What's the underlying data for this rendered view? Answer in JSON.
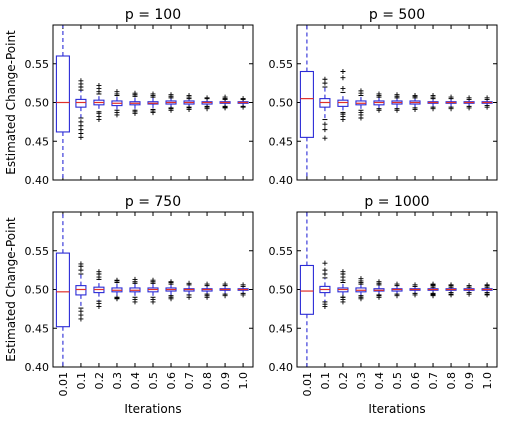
{
  "chart_data": [
    {
      "type": "box",
      "title": "p = 100",
      "xlabel": "",
      "ylabel": "Estimated Change-Point",
      "ylim": [
        0.4,
        0.6
      ],
      "yticks": [
        "0.40",
        "0.45",
        "0.50",
        "0.55"
      ],
      "xticks": [
        "0.01",
        "0.1",
        "0.2",
        "0.3",
        "0.4",
        "0.5",
        "0.6",
        "0.7",
        "0.8",
        "0.9",
        "1.0"
      ],
      "boxes": [
        {
          "x": "0.01",
          "whislo": 0.4,
          "q1": 0.462,
          "med": 0.5,
          "q3": 0.56,
          "whishi": 0.6,
          "fliers": []
        },
        {
          "x": "0.1",
          "whislo": 0.48,
          "q1": 0.494,
          "med": 0.5,
          "q3": 0.504,
          "whishi": 0.516,
          "fliers": [
            0.455,
            0.46,
            0.465,
            0.47,
            0.475,
            0.52,
            0.524,
            0.528
          ]
        },
        {
          "x": "0.2",
          "whislo": 0.488,
          "q1": 0.497,
          "med": 0.5,
          "q3": 0.503,
          "whishi": 0.511,
          "fliers": [
            0.478,
            0.482,
            0.486,
            0.514,
            0.518,
            0.522
          ]
        },
        {
          "x": "0.3",
          "whislo": 0.49,
          "q1": 0.496,
          "med": 0.499,
          "q3": 0.502,
          "whishi": 0.509,
          "fliers": [
            0.484,
            0.487,
            0.511,
            0.514
          ]
        },
        {
          "x": "0.4",
          "whislo": 0.49,
          "q1": 0.497,
          "med": 0.499,
          "q3": 0.501,
          "whishi": 0.508,
          "fliers": [
            0.486,
            0.488,
            0.51,
            0.512
          ]
        },
        {
          "x": "0.5",
          "whislo": 0.491,
          "q1": 0.498,
          "med": 0.499,
          "q3": 0.501,
          "whishi": 0.507,
          "fliers": [
            0.487,
            0.489,
            0.509,
            0.511
          ]
        },
        {
          "x": "0.6",
          "whislo": 0.493,
          "q1": 0.498,
          "med": 0.5,
          "q3": 0.502,
          "whishi": 0.506,
          "fliers": [
            0.49,
            0.492,
            0.508,
            0.51
          ]
        },
        {
          "x": "0.7",
          "whislo": 0.494,
          "q1": 0.498,
          "med": 0.5,
          "q3": 0.502,
          "whishi": 0.505,
          "fliers": [
            0.491,
            0.493,
            0.507,
            0.509
          ]
        },
        {
          "x": "0.8",
          "whislo": 0.495,
          "q1": 0.498,
          "med": 0.5,
          "q3": 0.501,
          "whishi": 0.505,
          "fliers": [
            0.492,
            0.494,
            0.506
          ]
        },
        {
          "x": "0.9",
          "whislo": 0.495,
          "q1": 0.499,
          "med": 0.5,
          "q3": 0.501,
          "whishi": 0.504,
          "fliers": [
            0.493,
            0.494,
            0.505,
            0.507
          ]
        },
        {
          "x": "1.0",
          "whislo": 0.495,
          "q1": 0.499,
          "med": 0.5,
          "q3": 0.501,
          "whishi": 0.504,
          "fliers": [
            0.494,
            0.505
          ]
        }
      ]
    },
    {
      "type": "box",
      "title": "p = 500",
      "xlabel": "",
      "ylabel": "",
      "ylim": [
        0.4,
        0.6
      ],
      "yticks": [
        "0.40",
        "0.45",
        "0.50",
        "0.55"
      ],
      "xticks": [
        "0.01",
        "0.1",
        "0.2",
        "0.3",
        "0.4",
        "0.5",
        "0.6",
        "0.7",
        "0.8",
        "0.9",
        "1.0"
      ],
      "boxes": [
        {
          "x": "0.01",
          "whislo": 0.4,
          "q1": 0.455,
          "med": 0.505,
          "q3": 0.54,
          "whishi": 0.6,
          "fliers": []
        },
        {
          "x": "0.1",
          "whislo": 0.478,
          "q1": 0.494,
          "med": 0.5,
          "q3": 0.505,
          "whishi": 0.52,
          "fliers": [
            0.454,
            0.465,
            0.472,
            0.525,
            0.53
          ]
        },
        {
          "x": "0.2",
          "whislo": 0.487,
          "q1": 0.495,
          "med": 0.5,
          "q3": 0.503,
          "whishi": 0.513,
          "fliers": [
            0.478,
            0.482,
            0.485,
            0.518,
            0.532,
            0.54
          ]
        },
        {
          "x": "0.3",
          "whislo": 0.49,
          "q1": 0.497,
          "med": 0.499,
          "q3": 0.502,
          "whishi": 0.509,
          "fliers": [
            0.48,
            0.484,
            0.487,
            0.512,
            0.515
          ]
        },
        {
          "x": "0.4",
          "whislo": 0.492,
          "q1": 0.497,
          "med": 0.5,
          "q3": 0.502,
          "whishi": 0.507,
          "fliers": [
            0.49,
            0.509,
            0.511
          ]
        },
        {
          "x": "0.5",
          "whislo": 0.492,
          "q1": 0.498,
          "med": 0.5,
          "q3": 0.502,
          "whishi": 0.506,
          "fliers": [
            0.49,
            0.508,
            0.51
          ]
        },
        {
          "x": "0.6",
          "whislo": 0.493,
          "q1": 0.498,
          "med": 0.5,
          "q3": 0.502,
          "whishi": 0.506,
          "fliers": [
            0.491,
            0.508,
            0.509
          ]
        },
        {
          "x": "0.7",
          "whislo": 0.494,
          "q1": 0.499,
          "med": 0.5,
          "q3": 0.501,
          "whishi": 0.505,
          "fliers": [
            0.492,
            0.507,
            0.509
          ]
        },
        {
          "x": "0.8",
          "whislo": 0.494,
          "q1": 0.499,
          "med": 0.5,
          "q3": 0.501,
          "whishi": 0.505,
          "fliers": [
            0.492,
            0.507
          ]
        },
        {
          "x": "0.9",
          "whislo": 0.495,
          "q1": 0.499,
          "med": 0.5,
          "q3": 0.501,
          "whishi": 0.504,
          "fliers": [
            0.493,
            0.506
          ]
        },
        {
          "x": "1.0",
          "whislo": 0.496,
          "q1": 0.499,
          "med": 0.5,
          "q3": 0.501,
          "whishi": 0.504,
          "fliers": [
            0.494,
            0.506
          ]
        }
      ]
    },
    {
      "type": "box",
      "title": "p = 750",
      "xlabel": "Iterations",
      "ylabel": "Estimated Change-Point",
      "ylim": [
        0.4,
        0.6
      ],
      "yticks": [
        "0.40",
        "0.45",
        "0.50",
        "0.55"
      ],
      "xticks": [
        "0.01",
        "0.1",
        "0.2",
        "0.3",
        "0.4",
        "0.5",
        "0.6",
        "0.7",
        "0.8",
        "0.9",
        "1.0"
      ],
      "boxes": [
        {
          "x": "0.01",
          "whislo": 0.4,
          "q1": 0.452,
          "med": 0.497,
          "q3": 0.547,
          "whishi": 0.6,
          "fliers": []
        },
        {
          "x": "0.1",
          "whislo": 0.476,
          "q1": 0.493,
          "med": 0.5,
          "q3": 0.505,
          "whishi": 0.52,
          "fliers": [
            0.462,
            0.467,
            0.472,
            0.525,
            0.53,
            0.533
          ]
        },
        {
          "x": "0.2",
          "whislo": 0.485,
          "q1": 0.496,
          "med": 0.5,
          "q3": 0.503,
          "whishi": 0.513,
          "fliers": [
            0.478,
            0.482,
            0.516,
            0.52,
            0.523
          ]
        },
        {
          "x": "0.3",
          "whislo": 0.49,
          "q1": 0.497,
          "med": 0.499,
          "q3": 0.502,
          "whishi": 0.509,
          "fliers": [
            0.488,
            0.489,
            0.511,
            0.512
          ]
        },
        {
          "x": "0.4",
          "whislo": 0.49,
          "q1": 0.497,
          "med": 0.499,
          "q3": 0.502,
          "whishi": 0.508,
          "fliers": [
            0.484,
            0.487,
            0.51,
            0.513
          ]
        },
        {
          "x": "0.5",
          "whislo": 0.49,
          "q1": 0.497,
          "med": 0.5,
          "q3": 0.502,
          "whishi": 0.508,
          "fliers": [
            0.484,
            0.487,
            0.51,
            0.512
          ]
        },
        {
          "x": "0.6",
          "whislo": 0.492,
          "q1": 0.498,
          "med": 0.5,
          "q3": 0.502,
          "whishi": 0.507,
          "fliers": [
            0.488,
            0.49,
            0.509,
            0.51
          ]
        },
        {
          "x": "0.7",
          "whislo": 0.493,
          "q1": 0.498,
          "med": 0.5,
          "q3": 0.501,
          "whishi": 0.506,
          "fliers": [
            0.49,
            0.508
          ]
        },
        {
          "x": "0.8",
          "whislo": 0.494,
          "q1": 0.498,
          "med": 0.5,
          "q3": 0.501,
          "whishi": 0.505,
          "fliers": [
            0.49,
            0.492,
            0.507
          ]
        },
        {
          "x": "0.9",
          "whislo": 0.494,
          "q1": 0.499,
          "med": 0.5,
          "q3": 0.501,
          "whishi": 0.505,
          "fliers": [
            0.492,
            0.507
          ]
        },
        {
          "x": "1.0",
          "whislo": 0.495,
          "q1": 0.499,
          "med": 0.5,
          "q3": 0.501,
          "whishi": 0.504,
          "fliers": [
            0.493,
            0.506
          ]
        }
      ]
    },
    {
      "type": "box",
      "title": "p = 1000",
      "xlabel": "Iterations",
      "ylabel": "",
      "ylim": [
        0.4,
        0.6
      ],
      "yticks": [
        "0.40",
        "0.45",
        "0.50",
        "0.55"
      ],
      "xticks": [
        "0.01",
        "0.1",
        "0.2",
        "0.3",
        "0.4",
        "0.5",
        "0.6",
        "0.7",
        "0.8",
        "0.9",
        "1.0"
      ],
      "boxes": [
        {
          "x": "0.01",
          "whislo": 0.4,
          "q1": 0.468,
          "med": 0.498,
          "q3": 0.531,
          "whishi": 0.6,
          "fliers": []
        },
        {
          "x": "0.1",
          "whislo": 0.484,
          "q1": 0.496,
          "med": 0.5,
          "q3": 0.504,
          "whishi": 0.515,
          "fliers": [
            0.478,
            0.481,
            0.52,
            0.525,
            0.534
          ]
        },
        {
          "x": "0.2",
          "whislo": 0.49,
          "q1": 0.497,
          "med": 0.5,
          "q3": 0.502,
          "whishi": 0.509,
          "fliers": [
            0.484,
            0.487,
            0.49,
            0.512,
            0.516,
            0.52,
            0.523
          ]
        },
        {
          "x": "0.3",
          "whislo": 0.492,
          "q1": 0.497,
          "med": 0.499,
          "q3": 0.502,
          "whishi": 0.507,
          "fliers": [
            0.488,
            0.49,
            0.509,
            0.511,
            0.514
          ]
        },
        {
          "x": "0.4",
          "whislo": 0.493,
          "q1": 0.498,
          "med": 0.499,
          "q3": 0.501,
          "whishi": 0.506,
          "fliers": [
            0.49,
            0.492,
            0.508,
            0.51
          ]
        },
        {
          "x": "0.5",
          "whislo": 0.494,
          "q1": 0.498,
          "med": 0.5,
          "q3": 0.501,
          "whishi": 0.505,
          "fliers": [
            0.492,
            0.507
          ]
        },
        {
          "x": "0.6",
          "whislo": 0.495,
          "q1": 0.499,
          "med": 0.5,
          "q3": 0.501,
          "whishi": 0.504,
          "fliers": [
            0.493,
            0.506
          ]
        },
        {
          "x": "0.7",
          "whislo": 0.495,
          "q1": 0.499,
          "med": 0.5,
          "q3": 0.501,
          "whishi": 0.503,
          "fliers": [
            0.492,
            0.493,
            0.494,
            0.505,
            0.506,
            0.507
          ]
        },
        {
          "x": "0.8",
          "whislo": 0.496,
          "q1": 0.499,
          "med": 0.5,
          "q3": 0.501,
          "whishi": 0.503,
          "fliers": [
            0.493,
            0.494,
            0.505,
            0.506
          ]
        },
        {
          "x": "0.9",
          "whislo": 0.496,
          "q1": 0.499,
          "med": 0.5,
          "q3": 0.501,
          "whishi": 0.503,
          "fliers": [
            0.494,
            0.505
          ]
        },
        {
          "x": "1.0",
          "whislo": 0.496,
          "q1": 0.499,
          "med": 0.5,
          "q3": 0.501,
          "whishi": 0.503,
          "fliers": [
            0.493,
            0.494,
            0.505,
            0.506
          ]
        }
      ]
    }
  ]
}
